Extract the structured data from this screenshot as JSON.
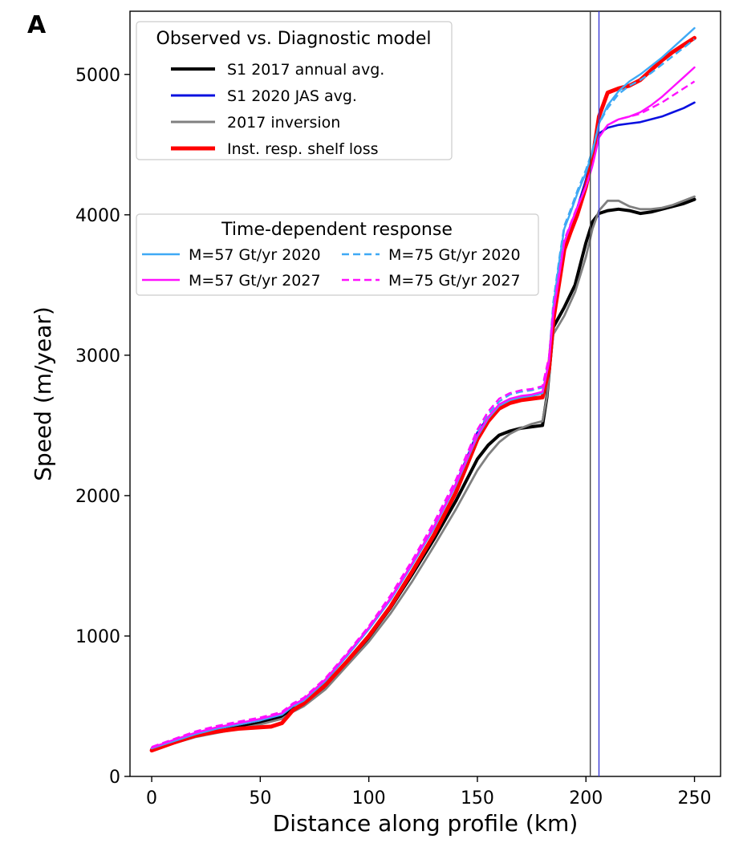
{
  "panel_label": "A",
  "chart_data": {
    "type": "line",
    "xlabel": "Distance along profile (km)",
    "ylabel": "Speed (m/year)",
    "xlim": [
      -10,
      262
    ],
    "ylim": [
      0,
      5450
    ],
    "xticks": [
      0,
      50,
      100,
      150,
      200,
      250
    ],
    "yticks": [
      0,
      1000,
      2000,
      3000,
      4000,
      5000
    ],
    "vlines": [
      {
        "x": 202,
        "color": "#444444"
      },
      {
        "x": 206,
        "color": "#3a3ad6"
      }
    ],
    "legends": [
      {
        "title": "Observed vs. Diagnostic model",
        "placement": "top-left",
        "entries": [
          "S1 2017 annual avg.",
          "S1 2020 JAS avg.",
          "2017 inversion",
          "Inst. resp. shelf loss"
        ]
      },
      {
        "title": "Time-dependent response",
        "placement": "upper-left",
        "entries": [
          "M=57 Gt/yr 2020",
          "M=75 Gt/yr 2020",
          "M=57 Gt/yr 2027",
          "M=75 Gt/yr 2027"
        ]
      }
    ],
    "series": [
      {
        "name": "S1 2017 annual avg.",
        "color": "#000000",
        "style": "solid",
        "width": 4,
        "x": [
          0,
          10,
          20,
          30,
          40,
          50,
          60,
          65,
          70,
          80,
          90,
          100,
          110,
          120,
          130,
          140,
          150,
          155,
          160,
          165,
          170,
          175,
          180,
          182,
          185,
          190,
          195,
          200,
          203,
          206,
          210,
          215,
          220,
          225,
          230,
          235,
          240,
          245,
          250
        ],
        "y": [
          190,
          240,
          290,
          320,
          350,
          380,
          430,
          480,
          510,
          640,
          810,
          990,
          1200,
          1440,
          1690,
          1960,
          2260,
          2360,
          2430,
          2460,
          2480,
          2490,
          2500,
          2700,
          3200,
          3340,
          3500,
          3800,
          3950,
          4010,
          4030,
          4040,
          4030,
          4010,
          4020,
          4040,
          4060,
          4080,
          4110
        ]
      },
      {
        "name": "S1 2020 JAS avg.",
        "color": "#0a10e0",
        "style": "solid",
        "width": 2.6,
        "x": [
          0,
          10,
          20,
          30,
          40,
          50,
          60,
          65,
          70,
          80,
          90,
          100,
          110,
          120,
          130,
          140,
          150,
          155,
          160,
          165,
          170,
          175,
          180,
          183,
          185,
          188,
          190,
          193,
          196,
          200,
          203,
          206,
          210,
          215,
          220,
          225,
          230,
          235,
          240,
          245,
          250
        ],
        "y": [
          200,
          250,
          300,
          340,
          370,
          400,
          440,
          500,
          540,
          680,
          860,
          1050,
          1260,
          1510,
          1770,
          2080,
          2450,
          2560,
          2640,
          2680,
          2700,
          2710,
          2730,
          2950,
          3300,
          3600,
          3800,
          3930,
          4050,
          4250,
          4450,
          4580,
          4620,
          4640,
          4650,
          4660,
          4680,
          4700,
          4730,
          4760,
          4800
        ]
      },
      {
        "name": "2017 inversion",
        "color": "#808080",
        "style": "solid",
        "width": 2.8,
        "x": [
          0,
          10,
          20,
          30,
          40,
          50,
          60,
          65,
          70,
          80,
          90,
          100,
          110,
          120,
          130,
          140,
          150,
          155,
          160,
          165,
          170,
          175,
          180,
          182,
          185,
          190,
          195,
          200,
          203,
          206,
          210,
          215,
          220,
          225,
          230,
          235,
          240,
          245,
          250
        ],
        "y": [
          185,
          235,
          280,
          310,
          340,
          370,
          410,
          460,
          500,
          620,
          790,
          960,
          1160,
          1390,
          1640,
          1900,
          2180,
          2290,
          2380,
          2440,
          2480,
          2510,
          2530,
          2700,
          3150,
          3280,
          3450,
          3700,
          3900,
          4030,
          4100,
          4100,
          4060,
          4040,
          4040,
          4050,
          4070,
          4100,
          4130
        ]
      },
      {
        "name": "Inst. resp. shelf loss",
        "color": "#ff0000",
        "style": "solid",
        "width": 5,
        "x": [
          0,
          10,
          20,
          30,
          40,
          50,
          55,
          60,
          65,
          70,
          80,
          90,
          100,
          110,
          120,
          130,
          140,
          150,
          155,
          160,
          165,
          170,
          175,
          180,
          183,
          185,
          188,
          190,
          193,
          196,
          200,
          203,
          206,
          210,
          215,
          220,
          225,
          230,
          235,
          240,
          245,
          250
        ],
        "y": [
          185,
          240,
          290,
          320,
          340,
          350,
          355,
          380,
          470,
          520,
          650,
          820,
          1000,
          1210,
          1460,
          1720,
          2020,
          2400,
          2530,
          2620,
          2660,
          2680,
          2690,
          2700,
          2900,
          3250,
          3550,
          3750,
          3880,
          4000,
          4200,
          4400,
          4700,
          4870,
          4900,
          4920,
          4960,
          5030,
          5100,
          5160,
          5210,
          5260
        ]
      },
      {
        "name": "M=57 Gt/yr 2020",
        "color": "#3fa9f5",
        "style": "solid",
        "width": 2.4,
        "x": [
          0,
          10,
          20,
          30,
          40,
          50,
          60,
          65,
          70,
          80,
          90,
          100,
          110,
          120,
          130,
          140,
          150,
          155,
          160,
          165,
          170,
          175,
          180,
          183,
          185,
          188,
          190,
          193,
          196,
          200,
          203,
          206,
          210,
          215,
          220,
          225,
          230,
          235,
          240,
          245,
          250
        ],
        "y": [
          200,
          250,
          300,
          340,
          370,
          400,
          440,
          500,
          540,
          680,
          860,
          1050,
          1260,
          1510,
          1770,
          2070,
          2420,
          2550,
          2640,
          2680,
          2700,
          2710,
          2730,
          2950,
          3350,
          3700,
          3900,
          4020,
          4150,
          4300,
          4450,
          4650,
          4780,
          4880,
          4950,
          5000,
          5060,
          5120,
          5190,
          5260,
          5330
        ]
      },
      {
        "name": "M=75 Gt/yr 2020",
        "color": "#3fa9f5",
        "style": "dashed",
        "width": 2.4,
        "x": [
          0,
          10,
          20,
          30,
          40,
          50,
          60,
          65,
          70,
          80,
          90,
          100,
          110,
          120,
          130,
          140,
          150,
          155,
          160,
          165,
          170,
          175,
          180,
          183,
          185,
          188,
          190,
          193,
          196,
          200,
          203,
          206,
          210,
          215,
          220,
          225,
          230,
          235,
          240,
          245,
          250
        ],
        "y": [
          205,
          255,
          305,
          345,
          375,
          405,
          445,
          505,
          545,
          690,
          870,
          1060,
          1270,
          1520,
          1790,
          2090,
          2450,
          2580,
          2670,
          2720,
          2740,
          2750,
          2770,
          2980,
          3380,
          3720,
          3920,
          4040,
          4170,
          4320,
          4460,
          4650,
          4760,
          4860,
          4920,
          4960,
          5010,
          5070,
          5130,
          5190,
          5250
        ]
      },
      {
        "name": "M=57 Gt/yr 2027",
        "color": "#ff10ff",
        "style": "solid",
        "width": 2.4,
        "x": [
          0,
          10,
          20,
          30,
          40,
          50,
          60,
          65,
          70,
          80,
          90,
          100,
          110,
          120,
          130,
          140,
          150,
          155,
          160,
          165,
          170,
          175,
          180,
          183,
          185,
          188,
          190,
          193,
          196,
          200,
          203,
          206,
          210,
          215,
          220,
          225,
          230,
          235,
          240,
          245,
          250
        ],
        "y": [
          205,
          260,
          310,
          350,
          380,
          410,
          450,
          510,
          550,
          690,
          870,
          1060,
          1270,
          1520,
          1780,
          2080,
          2430,
          2560,
          2650,
          2690,
          2710,
          2720,
          2740,
          2950,
          3300,
          3600,
          3800,
          3930,
          4050,
          4200,
          4350,
          4550,
          4640,
          4680,
          4700,
          4730,
          4780,
          4840,
          4910,
          4980,
          5050
        ]
      },
      {
        "name": "M=75 Gt/yr 2027",
        "color": "#ff10ff",
        "style": "dashed",
        "width": 2.4,
        "x": [
          0,
          10,
          20,
          30,
          40,
          50,
          60,
          65,
          70,
          80,
          90,
          100,
          110,
          120,
          130,
          140,
          150,
          155,
          160,
          165,
          170,
          175,
          180,
          183,
          185,
          188,
          190,
          193,
          196,
          200,
          203,
          206,
          210,
          215,
          220,
          225,
          230,
          235,
          240,
          245,
          250
        ],
        "y": [
          210,
          265,
          320,
          360,
          390,
          420,
          460,
          520,
          560,
          700,
          880,
          1070,
          1290,
          1540,
          1810,
          2110,
          2470,
          2600,
          2690,
          2730,
          2750,
          2760,
          2780,
          2990,
          3330,
          3620,
          3820,
          3940,
          4060,
          4200,
          4350,
          4560,
          4640,
          4680,
          4700,
          4720,
          4760,
          4800,
          4850,
          4900,
          4950
        ]
      }
    ]
  }
}
